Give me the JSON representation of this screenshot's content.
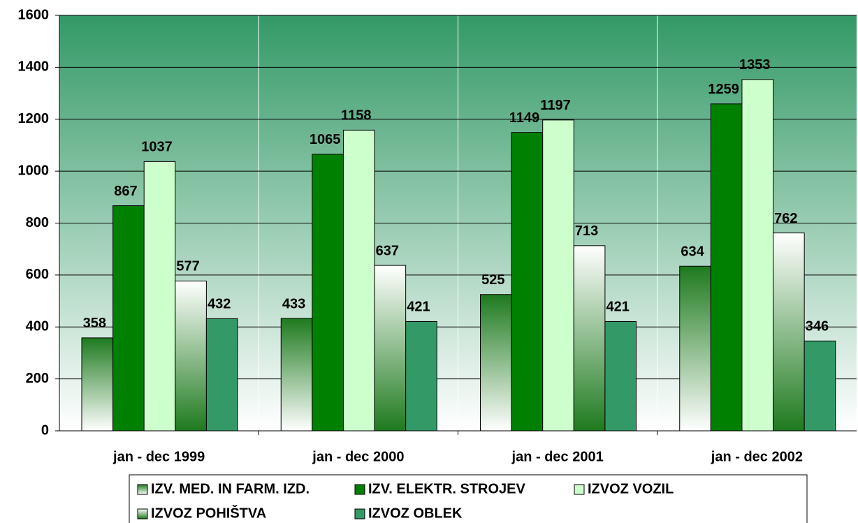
{
  "chart_data": {
    "type": "bar",
    "categories": [
      "jan - dec 1999",
      "jan - dec 2000",
      "jan - dec 2001",
      "jan - dec 2002"
    ],
    "series": [
      {
        "name": "IZV. MED. IN FARM. IZD.",
        "color": "#1e7a1e",
        "gradient": "top-dark",
        "values": [
          358,
          433,
          525,
          634
        ]
      },
      {
        "name": "IZV. ELEKTR. STROJEV",
        "color": "#008000",
        "values": [
          867,
          1065,
          1149,
          1259
        ]
      },
      {
        "name": "IZVOZ VOZIL",
        "color": "#ccffcc",
        "values": [
          1037,
          1158,
          1197,
          1353
        ]
      },
      {
        "name": "IZVOZ POHIŠTVA",
        "color": "#1e7a1e",
        "gradient": "bottom-dark",
        "values": [
          577,
          637,
          713,
          762
        ]
      },
      {
        "name": "IZVOZ OBLEK",
        "color": "#339966",
        "values": [
          432,
          421,
          421,
          346
        ]
      }
    ],
    "ylim": [
      0,
      1600
    ],
    "yticks": [
      0,
      200,
      400,
      600,
      800,
      1000,
      1200,
      1400,
      1600
    ],
    "grid": true
  }
}
